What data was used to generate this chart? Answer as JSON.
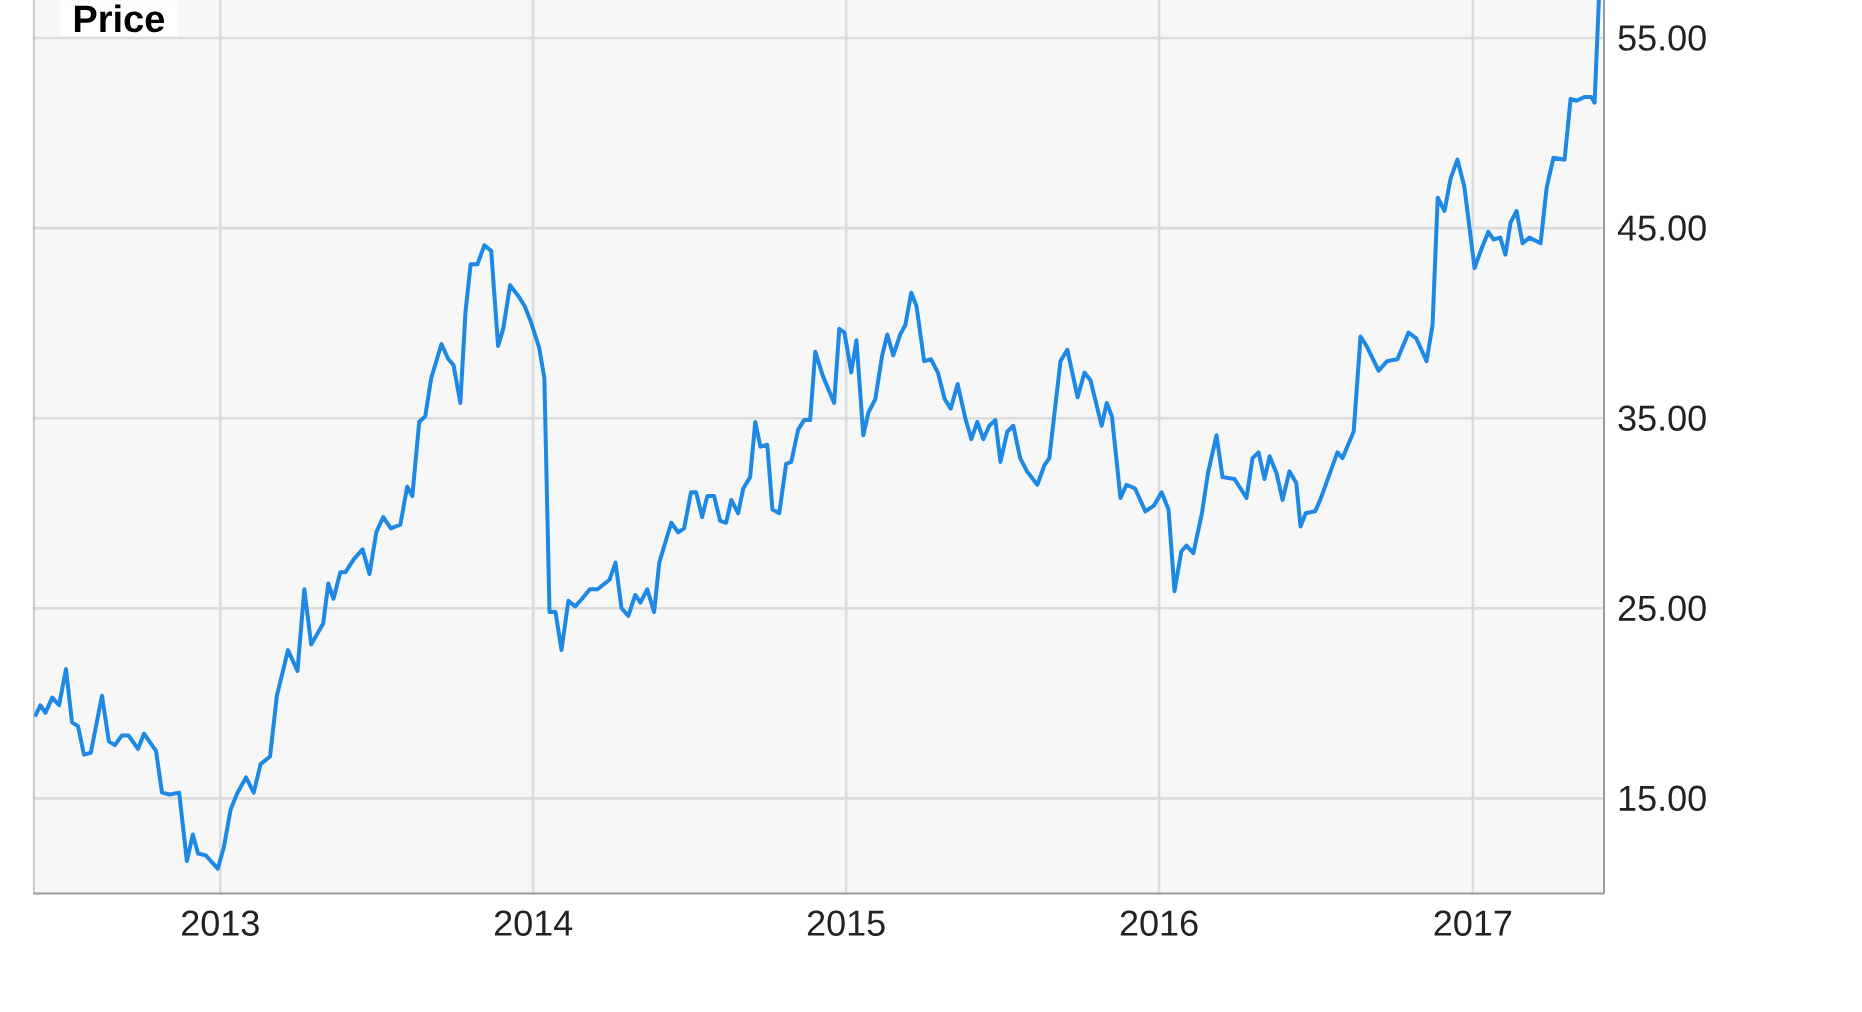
{
  "chart_data": {
    "type": "line",
    "title": "Price",
    "x": [
      "2012-05-30",
      "2012-06-05",
      "2012-06-11",
      "2012-06-19",
      "2012-06-27",
      "2012-07-05",
      "2012-07-12",
      "2012-07-19",
      "2012-07-26",
      "2012-08-03",
      "2012-08-16",
      "2012-08-24",
      "2012-08-31",
      "2012-09-08",
      "2012-09-16",
      "2012-09-27",
      "2012-10-04",
      "2012-10-18",
      "2012-10-25",
      "2012-11-03",
      "2012-11-14",
      "2012-11-23",
      "2012-11-30",
      "2012-12-06",
      "2012-12-15",
      "2012-12-29",
      "2013-01-05",
      "2013-01-13",
      "2013-01-21",
      "2013-01-31",
      "2013-02-09",
      "2013-02-17",
      "2013-02-28",
      "2013-03-08",
      "2013-03-21",
      "2013-04-01",
      "2013-04-09",
      "2013-04-17",
      "2013-05-01",
      "2013-05-07",
      "2013-05-13",
      "2013-05-21",
      "2013-05-27",
      "2013-06-06",
      "2013-06-16",
      "2013-06-24",
      "2013-07-02",
      "2013-07-10",
      "2013-07-19",
      "2013-07-30",
      "2013-08-07",
      "2013-08-13",
      "2013-08-21",
      "2013-08-28",
      "2013-09-04",
      "2013-09-16",
      "2013-09-24",
      "2013-09-30",
      "2013-10-08",
      "2013-10-14",
      "2013-10-20",
      "2013-10-28",
      "2013-11-05",
      "2013-11-13",
      "2013-11-21",
      "2013-11-27",
      "2013-12-05",
      "2013-12-15",
      "2013-12-22",
      "2013-12-29",
      "2014-01-08",
      "2014-01-14",
      "2014-01-20",
      "2014-01-27",
      "2014-02-03",
      "2014-02-11",
      "2014-02-19",
      "2014-02-27",
      "2014-03-08",
      "2014-03-17",
      "2014-03-31",
      "2014-04-07",
      "2014-04-14",
      "2014-04-22",
      "2014-04-30",
      "2014-05-06",
      "2014-05-14",
      "2014-05-22",
      "2014-05-28",
      "2014-06-11",
      "2014-06-19",
      "2014-06-26",
      "2014-07-04",
      "2014-07-10",
      "2014-07-17",
      "2014-07-23",
      "2014-07-31",
      "2014-08-07",
      "2014-08-14",
      "2014-08-20",
      "2014-08-28",
      "2014-09-03",
      "2014-09-11",
      "2014-09-17",
      "2014-09-23",
      "2014-10-01",
      "2014-10-07",
      "2014-10-15",
      "2014-10-23",
      "2014-10-29",
      "2014-11-06",
      "2014-11-13",
      "2014-11-20",
      "2014-11-26",
      "2014-12-05",
      "2014-12-18",
      "2014-12-24",
      "2014-12-30",
      "2015-01-07",
      "2015-01-13",
      "2015-01-21",
      "2015-01-27",
      "2015-02-04",
      "2015-02-12",
      "2015-02-18",
      "2015-02-25",
      "2015-03-05",
      "2015-03-11",
      "2015-03-18",
      "2015-03-24",
      "2015-04-02",
      "2015-04-10",
      "2015-04-18",
      "2015-04-26",
      "2015-05-03",
      "2015-05-11",
      "2015-05-20",
      "2015-05-27",
      "2015-06-03",
      "2015-06-10",
      "2015-06-17",
      "2015-06-24",
      "2015-06-30",
      "2015-07-08",
      "2015-07-15",
      "2015-07-23",
      "2015-07-31",
      "2015-08-12",
      "2015-08-20",
      "2015-08-26",
      "2015-09-08",
      "2015-09-16",
      "2015-09-28",
      "2015-10-06",
      "2015-10-13",
      "2015-10-26",
      "2015-11-01",
      "2015-11-07",
      "2015-11-17",
      "2015-11-24",
      "2015-12-04",
      "2015-12-16",
      "2015-12-26",
      "2016-01-04",
      "2016-01-12",
      "2016-01-19",
      "2016-01-27",
      "2016-02-02",
      "2016-02-10",
      "2016-02-20",
      "2016-02-27",
      "2016-03-08",
      "2016-03-15",
      "2016-03-29",
      "2016-04-12",
      "2016-04-19",
      "2016-04-26",
      "2016-05-03",
      "2016-05-09",
      "2016-05-17",
      "2016-05-24",
      "2016-06-01",
      "2016-06-09",
      "2016-06-14",
      "2016-06-20",
      "2016-07-01",
      "2016-07-07",
      "2016-07-15",
      "2016-07-27",
      "2016-08-02",
      "2016-08-15",
      "2016-08-23",
      "2016-08-30",
      "2016-09-13",
      "2016-09-23",
      "2016-10-05",
      "2016-10-18",
      "2016-10-27",
      "2016-11-08",
      "2016-11-15",
      "2016-11-21",
      "2016-11-29",
      "2016-12-06",
      "2016-12-14",
      "2016-12-22",
      "2017-01-03",
      "2017-01-11",
      "2017-01-19",
      "2017-01-25",
      "2017-02-02",
      "2017-02-08",
      "2017-02-14",
      "2017-02-21",
      "2017-02-28",
      "2017-03-08",
      "2017-03-21",
      "2017-03-28",
      "2017-04-05",
      "2017-04-18",
      "2017-04-25",
      "2017-05-02",
      "2017-05-11",
      "2017-05-19",
      "2017-05-23",
      "2017-05-28"
    ],
    "values": [
      19.3,
      19.9,
      19.5,
      20.3,
      19.9,
      21.8,
      19.0,
      18.8,
      17.3,
      17.4,
      20.4,
      18.0,
      17.8,
      18.3,
      18.3,
      17.6,
      18.4,
      17.5,
      15.3,
      15.2,
      15.3,
      11.7,
      13.1,
      12.1,
      12.0,
      11.3,
      12.4,
      14.4,
      15.3,
      16.1,
      15.3,
      16.8,
      17.2,
      20.4,
      22.8,
      21.7,
      26.0,
      23.1,
      24.2,
      26.3,
      25.5,
      26.9,
      26.9,
      27.6,
      28.1,
      26.8,
      29.0,
      29.8,
      29.2,
      29.4,
      31.4,
      30.9,
      34.8,
      35.1,
      37.1,
      38.9,
      38.1,
      37.8,
      35.8,
      40.6,
      43.1,
      43.1,
      44.1,
      43.8,
      38.8,
      39.7,
      42.0,
      41.4,
      40.9,
      40.1,
      38.7,
      37.1,
      24.8,
      24.8,
      22.8,
      25.4,
      25.1,
      25.5,
      26.0,
      26.0,
      26.5,
      27.4,
      25.0,
      24.6,
      25.7,
      25.3,
      26.0,
      24.8,
      27.4,
      29.5,
      29.0,
      29.2,
      31.1,
      31.1,
      29.8,
      30.9,
      30.9,
      29.6,
      29.5,
      30.7,
      30.0,
      31.3,
      31.9,
      34.8,
      33.5,
      33.6,
      30.2,
      30.0,
      32.6,
      32.7,
      34.4,
      34.9,
      34.9,
      38.5,
      37.2,
      35.8,
      39.7,
      39.5,
      37.4,
      39.1,
      34.1,
      35.3,
      36.0,
      38.3,
      39.4,
      38.3,
      39.4,
      39.9,
      41.6,
      40.9,
      38.0,
      38.1,
      37.4,
      36.0,
      35.5,
      36.8,
      35.0,
      33.9,
      34.8,
      33.9,
      34.6,
      34.9,
      32.7,
      34.3,
      34.6,
      32.9,
      32.2,
      31.5,
      32.5,
      32.9,
      38.0,
      38.6,
      36.1,
      37.4,
      37.0,
      34.6,
      35.8,
      35.1,
      30.8,
      31.5,
      31.3,
      30.1,
      30.4,
      31.1,
      30.2,
      25.9,
      28.0,
      28.3,
      27.9,
      30.0,
      32.1,
      34.1,
      31.9,
      31.8,
      30.8,
      32.9,
      33.2,
      31.8,
      33.0,
      32.1,
      30.7,
      32.2,
      31.6,
      29.3,
      30.0,
      30.1,
      30.7,
      31.7,
      33.2,
      32.9,
      34.3,
      39.3,
      38.8,
      37.5,
      38.0,
      38.1,
      39.5,
      39.2,
      38.0,
      39.9,
      46.6,
      45.9,
      47.6,
      48.6,
      47.2,
      42.9,
      43.9,
      44.8,
      44.4,
      44.5,
      43.6,
      45.3,
      45.9,
      44.2,
      44.5,
      44.2,
      47.1,
      48.7,
      48.6,
      51.8,
      51.7,
      51.9,
      51.9,
      51.6,
      57
    ],
    "color": "#1e88e5",
    "xlim": [
      "2012-05-28",
      "2017-06-03"
    ],
    "xticks": [
      "2013",
      "2014",
      "2015",
      "2016",
      "2017"
    ],
    "ylim": [
      10,
      57
    ],
    "yticks": [
      {
        "value": 15,
        "label": "15.00"
      },
      {
        "value": 25,
        "label": "25.00"
      },
      {
        "value": 35,
        "label": "35.00"
      },
      {
        "value": 45,
        "label": "45.00"
      },
      {
        "value": 55,
        "label": "55.00"
      }
    ],
    "grid": true,
    "marker": "none",
    "line_style": "solid"
  }
}
